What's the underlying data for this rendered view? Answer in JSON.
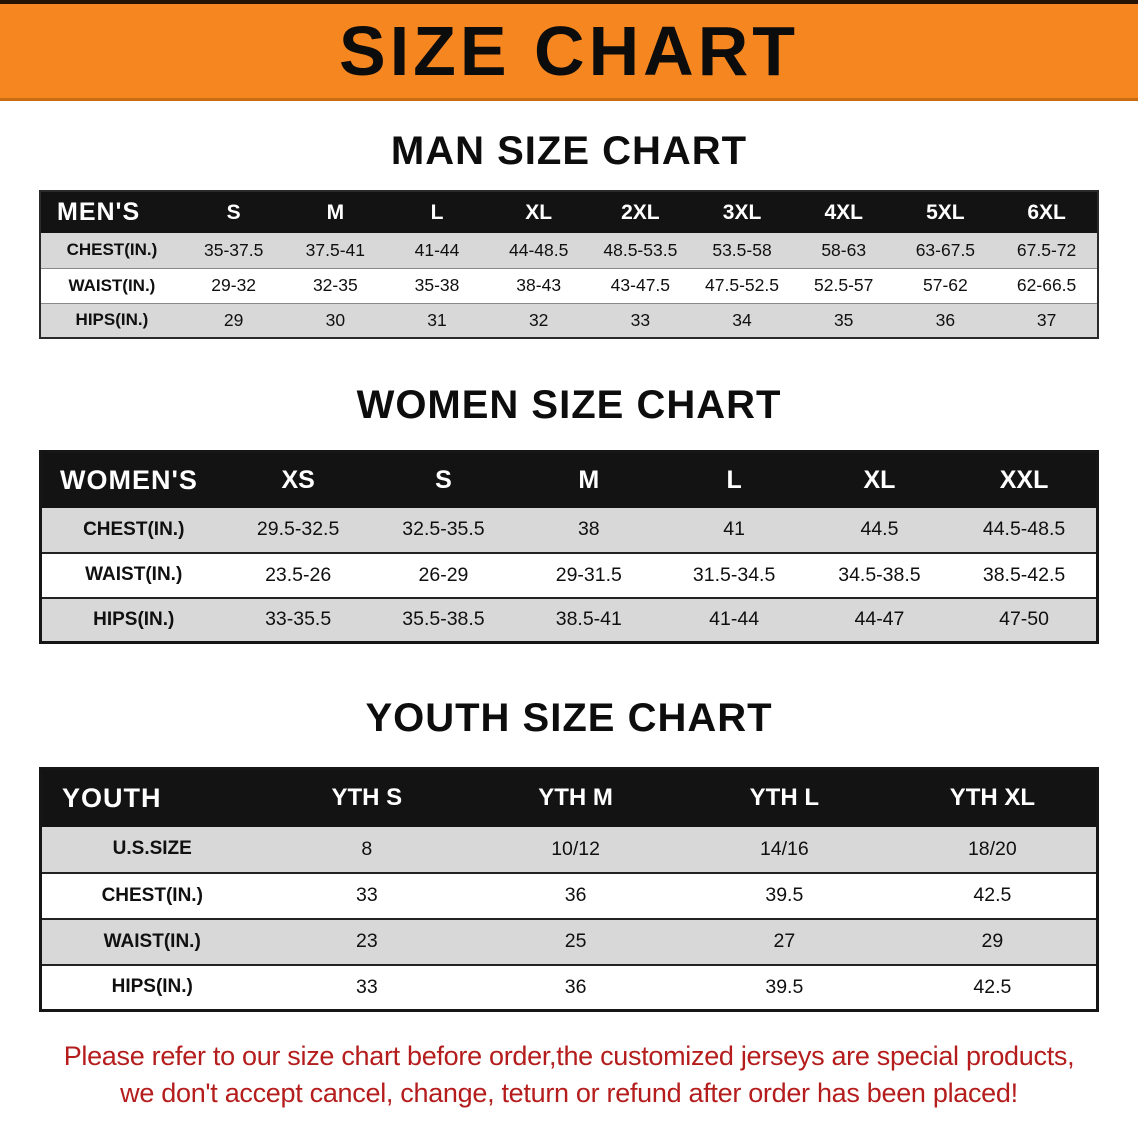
{
  "banner": {
    "title": "SIZE CHART"
  },
  "sections": [
    {
      "heading": "MAN SIZE CHART",
      "table": {
        "header": [
          "MEN'S",
          "S",
          "M",
          "L",
          "XL",
          "2XL",
          "3XL",
          "4XL",
          "5XL",
          "6XL"
        ],
        "rows": [
          [
            "CHEST(IN.)",
            "35-37.5",
            "37.5-41",
            "41-44",
            "44-48.5",
            "48.5-53.5",
            "53.5-58",
            "58-63",
            "63-67.5",
            "67.5-72"
          ],
          [
            "WAIST(IN.)",
            "29-32",
            "32-35",
            "35-38",
            "38-43",
            "43-47.5",
            "47.5-52.5",
            "52.5-57",
            "57-62",
            "62-66.5"
          ],
          [
            "HIPS(IN.)",
            "29",
            "30",
            "31",
            "32",
            "33",
            "34",
            "35",
            "36",
            "37"
          ]
        ]
      }
    },
    {
      "heading": "WOMEN SIZE CHART",
      "table": {
        "header": [
          "WOMEN'S",
          "XS",
          "S",
          "M",
          "L",
          "XL",
          "XXL"
        ],
        "rows": [
          [
            "CHEST(IN.)",
            "29.5-32.5",
            "32.5-35.5",
            "38",
            "41",
            "44.5",
            "44.5-48.5"
          ],
          [
            "WAIST(IN.)",
            "23.5-26",
            "26-29",
            "29-31.5",
            "31.5-34.5",
            "34.5-38.5",
            "38.5-42.5"
          ],
          [
            "HIPS(IN.)",
            "33-35.5",
            "35.5-38.5",
            "38.5-41",
            "41-44",
            "44-47",
            "47-50"
          ]
        ]
      }
    },
    {
      "heading": "YOUTH SIZE CHART",
      "table": {
        "header": [
          "YOUTH",
          "YTH S",
          "YTH M",
          "YTH L",
          "YTH XL"
        ],
        "rows": [
          [
            "U.S.SIZE",
            "8",
            "10/12",
            "14/16",
            "18/20"
          ],
          [
            "CHEST(IN.)",
            "33",
            "36",
            "39.5",
            "42.5"
          ],
          [
            "WAIST(IN.)",
            "23",
            "25",
            "27",
            "29"
          ],
          [
            "HIPS(IN.)",
            "33",
            "36",
            "39.5",
            "42.5"
          ]
        ]
      }
    }
  ],
  "footer": {
    "line1": "Please refer to our size chart before order,the customized jerseys are special products,",
    "line2": "we don't accept cancel, change, teturn or refund after order has been placed!"
  },
  "colors": {
    "banner_bg": "#f6861f",
    "table_header_bg": "#131313",
    "row_alt_bg": "#d8d8d8",
    "note_text": "#b51d1d"
  }
}
